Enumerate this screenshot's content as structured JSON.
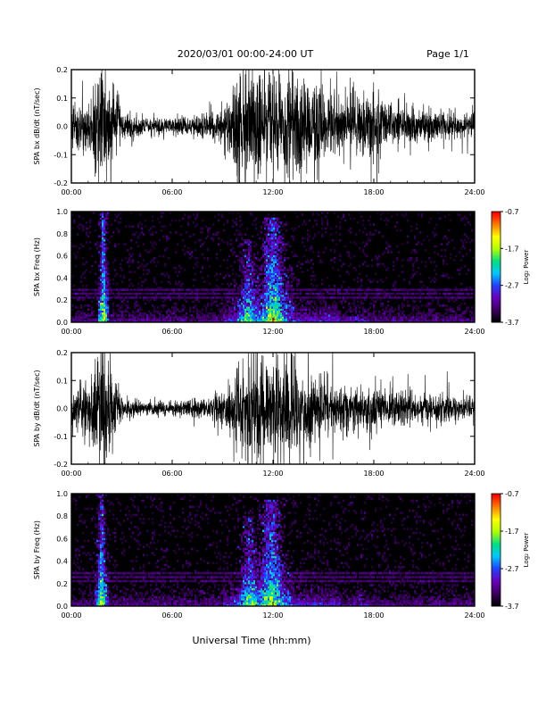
{
  "header": {
    "title": "2020/03/01  00:00-24:00 UT",
    "page": "Page 1/1"
  },
  "footer": {
    "xlabel": "Universal Time (hh:mm)"
  },
  "colors": {
    "trace": "#000000",
    "spectrogram_background": "#000000",
    "colormap": [
      "#000000",
      "#3b0060",
      "#6a00c0",
      "#2040ff",
      "#00c8ff",
      "#00e080",
      "#b0ff00",
      "#ffff00",
      "#ff8000",
      "#ff0000"
    ]
  },
  "chart_data": [
    {
      "type": "line",
      "ylabel": "SPA bx dB/dt (nT/sec)",
      "xlim": [
        0,
        24
      ],
      "ylim": [
        -0.2,
        0.2
      ],
      "x_tick_labels": [
        "00:00",
        "06:00",
        "12:00",
        "18:00",
        "24:00"
      ],
      "y_tick_labels": [
        "-0.2",
        "-0.1",
        "0.0",
        "0.1",
        "0.2"
      ],
      "series": [
        {
          "x": [
            0,
            1,
            1.5,
            1.8,
            2,
            2.3,
            2.6,
            3,
            4,
            5,
            6,
            7,
            8,
            9,
            9.5,
            10,
            10.5,
            11,
            11.5,
            12,
            12.5,
            13,
            13.5,
            14,
            15,
            16,
            17,
            18,
            19,
            20,
            21,
            22,
            23,
            24
          ],
          "y_envelope": [
            0.08,
            0.1,
            0.2,
            0.2,
            0.2,
            0.2,
            0.15,
            0.07,
            0.04,
            0.03,
            0.03,
            0.04,
            0.05,
            0.07,
            0.12,
            0.2,
            0.2,
            0.2,
            0.2,
            0.2,
            0.2,
            0.2,
            0.2,
            0.2,
            0.15,
            0.1,
            0.12,
            0.13,
            0.08,
            0.07,
            0.06,
            0.06,
            0.05,
            0.05
          ]
        }
      ]
    },
    {
      "type": "heatmap",
      "ylabel": "SPA bx Freq (Hz)",
      "colorbar_label": "Log₂ Power",
      "colorbar_ticks": [
        "-0.7",
        "-1.7",
        "-2.7",
        "-3.7"
      ],
      "xlim": [
        0,
        24
      ],
      "ylim": [
        0,
        1.0
      ],
      "clim": [
        -3.7,
        -0.7
      ],
      "x_tick_labels": [
        "00:00",
        "06:00",
        "12:00",
        "18:00",
        "24:00"
      ],
      "y_tick_labels": [
        "0.0",
        "0.2",
        "0.4",
        "0.6",
        "0.8",
        "1.0"
      ],
      "bursts": [
        {
          "t": 1.9,
          "width": 0.25,
          "fmax": 1.0,
          "peak": -1.4
        },
        {
          "t": 10.5,
          "width": 0.8,
          "fmax": 0.75,
          "peak": -1.8
        },
        {
          "t": 12.0,
          "width": 0.9,
          "fmax": 0.95,
          "peak": -1.5
        },
        {
          "t": 17.0,
          "width": 1.0,
          "fmax": 0.4,
          "peak": -2.9
        }
      ],
      "lines_hz": [
        0.3,
        0.26,
        0.22
      ]
    },
    {
      "type": "line",
      "ylabel": "SPA by dB/dt (nT/sec)",
      "xlim": [
        0,
        24
      ],
      "ylim": [
        -0.2,
        0.2
      ],
      "x_tick_labels": [
        "00:00",
        "06:00",
        "12:00",
        "18:00",
        "24:00"
      ],
      "y_tick_labels": [
        "-0.2",
        "-0.1",
        "0.0",
        "0.1",
        "0.2"
      ],
      "series": [
        {
          "x": [
            0,
            1,
            1.5,
            1.8,
            2,
            2.3,
            2.6,
            3,
            4,
            5,
            6,
            7,
            8,
            9,
            9.5,
            10,
            10.5,
            11,
            11.5,
            12,
            12.5,
            13,
            13.5,
            14,
            15,
            16,
            17,
            18,
            19,
            20,
            21,
            22,
            23,
            24
          ],
          "y_envelope": [
            0.06,
            0.12,
            0.2,
            0.2,
            0.2,
            0.2,
            0.12,
            0.05,
            0.03,
            0.03,
            0.03,
            0.03,
            0.04,
            0.07,
            0.12,
            0.18,
            0.2,
            0.2,
            0.2,
            0.2,
            0.2,
            0.2,
            0.2,
            0.14,
            0.1,
            0.1,
            0.09,
            0.09,
            0.07,
            0.06,
            0.06,
            0.05,
            0.05,
            0.05
          ]
        }
      ]
    },
    {
      "type": "heatmap",
      "ylabel": "SPA by Freq (Hz)",
      "colorbar_label": "Log₂ Power",
      "colorbar_ticks": [
        "-0.7",
        "-1.7",
        "-2.7",
        "-3.7"
      ],
      "xlim": [
        0,
        24
      ],
      "ylim": [
        0,
        1.0
      ],
      "clim": [
        -3.7,
        -0.7
      ],
      "x_tick_labels": [
        "00:00",
        "06:00",
        "12:00",
        "18:00",
        "24:00"
      ],
      "y_tick_labels": [
        "0.0",
        "0.2",
        "0.4",
        "0.6",
        "0.8",
        "1.0"
      ],
      "bursts": [
        {
          "t": 1.8,
          "width": 0.3,
          "fmax": 1.0,
          "peak": -1.5
        },
        {
          "t": 10.6,
          "width": 0.8,
          "fmax": 0.8,
          "peak": -1.8
        },
        {
          "t": 11.9,
          "width": 0.9,
          "fmax": 0.95,
          "peak": -1.6
        },
        {
          "t": 17.2,
          "width": 1.0,
          "fmax": 0.45,
          "peak": -2.9
        }
      ],
      "lines_hz": [
        0.3,
        0.26,
        0.22
      ]
    }
  ]
}
